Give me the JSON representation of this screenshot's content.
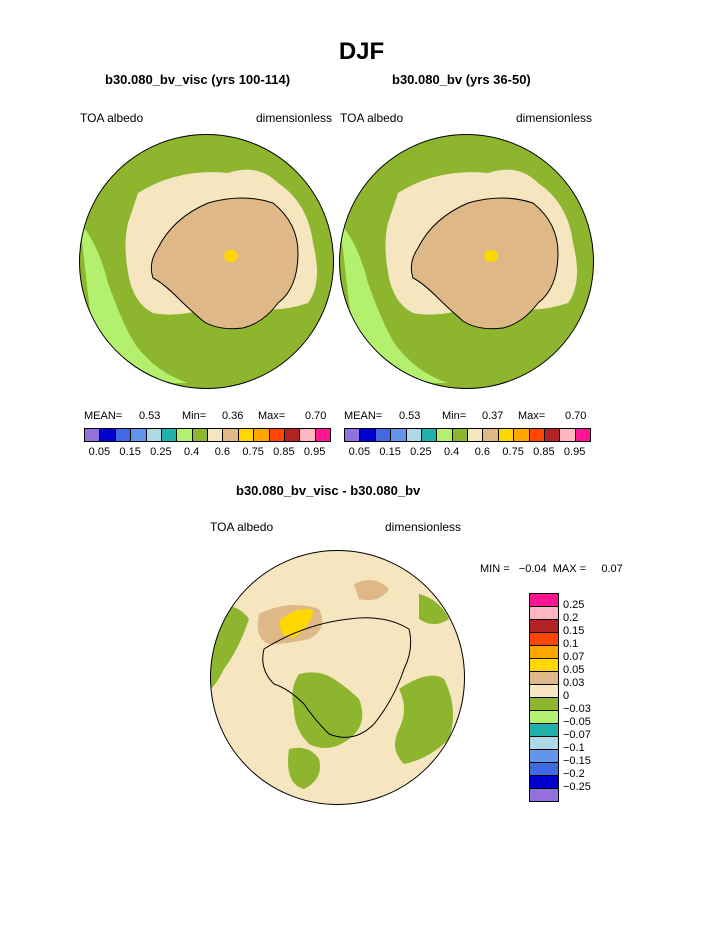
{
  "title": "DJF",
  "panels": [
    {
      "subtitle": "b30.080_bv_visc (yrs 100-114)",
      "left_label": "TOA albedo",
      "right_label": "dimensionless",
      "stats": {
        "mean_label": "MEAN=",
        "mean": "0.53",
        "min_label": "Min=",
        "min": "0.36",
        "max_label": "Max=",
        "max": "0.70"
      }
    },
    {
      "subtitle": "b30.080_bv (yrs 36-50)",
      "left_label": "TOA albedo",
      "right_label": "dimensionless",
      "stats": {
        "mean_label": "MEAN=",
        "mean": "0.53",
        "min_label": "Min=",
        "min": "0.37",
        "max_label": "Max=",
        "max": "0.70"
      }
    }
  ],
  "abs_colorbar": {
    "colors": [
      "#9370db",
      "#0000cd",
      "#4169e1",
      "#6495ed",
      "#add8e6",
      "#20b2aa",
      "#b2f06e",
      "#8db52e",
      "#f5e6c0",
      "#deb887",
      "#ffd700",
      "#ffa500",
      "#ff4500",
      "#b22222",
      "#ffb6c1",
      "#ff1493"
    ],
    "ticks": [
      "0.05",
      "0.15",
      "0.25",
      "0.4",
      "0.6",
      "0.75",
      "0.85",
      "0.95"
    ]
  },
  "diff_panel": {
    "subtitle": "b30.080_bv_visc - b30.080_bv",
    "left_label": "TOA albedo",
    "right_label": "dimensionless",
    "minmax": "MIN =   −0.04  MAX =     0.07",
    "colorbar": {
      "colors": [
        "#ff1493",
        "#ffb6c1",
        "#b22222",
        "#ff4500",
        "#ffa500",
        "#ffd700",
        "#deb887",
        "#f5e6c0",
        "#8db52e",
        "#b2f06e",
        "#20b2aa",
        "#add8e6",
        "#6495ed",
        "#4169e1",
        "#0000cd",
        "#9370db"
      ],
      "ticks": [
        "0.25",
        "0.2",
        "0.15",
        "0.1",
        "0.07",
        "0.05",
        "0.03",
        "0",
        "−0.03",
        "−0.05",
        "−0.07",
        "−0.1",
        "−0.15",
        "−0.2",
        "−0.25"
      ]
    }
  },
  "colors": {
    "ocean_green": "#8db52e",
    "light_green": "#b2f06e",
    "sea_ice_cream": "#f5e6c0",
    "continent_tan": "#deb887",
    "peak_yellow": "#ffd700"
  }
}
